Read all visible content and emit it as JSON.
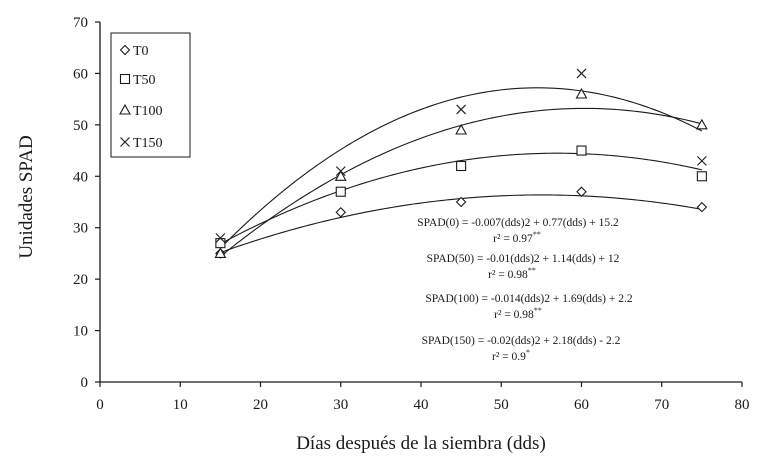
{
  "chart_data": {
    "type": "scatter",
    "xlabel": "Días después de la siembra (dds)",
    "ylabel": "Unidades SPAD",
    "xlim": [
      0,
      80
    ],
    "ylim": [
      0,
      70
    ],
    "xticks": [
      "0",
      "10",
      "20",
      "30",
      "40",
      "50",
      "60",
      "70",
      "80"
    ],
    "yticks": [
      "0",
      "10",
      "20",
      "30",
      "40",
      "50",
      "60",
      "70"
    ],
    "grid": false,
    "legend_position": "top-left",
    "x": [
      15,
      30,
      45,
      60,
      75
    ],
    "series": [
      {
        "name": "T0",
        "marker": "diamond",
        "values": [
          25,
          33,
          35,
          37,
          34
        ],
        "fit": {
          "a": -0.007,
          "b": 0.77,
          "c": 15.2
        }
      },
      {
        "name": "T50",
        "marker": "square",
        "values": [
          27,
          37,
          42,
          45,
          40
        ],
        "fit": {
          "a": -0.01,
          "b": 1.14,
          "c": 12
        }
      },
      {
        "name": "T100",
        "marker": "triangle",
        "values": [
          25,
          40,
          49,
          56,
          50
        ],
        "fit": {
          "a": -0.014,
          "b": 1.69,
          "c": 2.2
        }
      },
      {
        "name": "T150",
        "marker": "x",
        "values": [
          28,
          41,
          53,
          60,
          43
        ],
        "fit": {
          "a": -0.02,
          "b": 2.18,
          "c": -2.2
        }
      }
    ],
    "annotations": [
      {
        "equation": "SPAD(0) = -0.007(dds)2 + 0.77(dds) + 15.2",
        "r2": "r² = 0.97",
        "sig": "**"
      },
      {
        "equation": "SPAD(50) = -0.01(dds)2 + 1.14(dds) + 12",
        "r2": "r² = 0.98",
        "sig": "**"
      },
      {
        "equation": "SPAD(100) = -0.014(dds)2 + 1.69(dds) + 2.2",
        "r2": "r² = 0.98",
        "sig": "**"
      },
      {
        "equation": "SPAD(150) = -0.02(dds)2 + 2.18(dds) - 2.2",
        "r2": "r² = 0.9",
        "sig": "*"
      }
    ],
    "colors": {
      "marks": "#1a1a1a",
      "background": "#ffffff"
    }
  }
}
